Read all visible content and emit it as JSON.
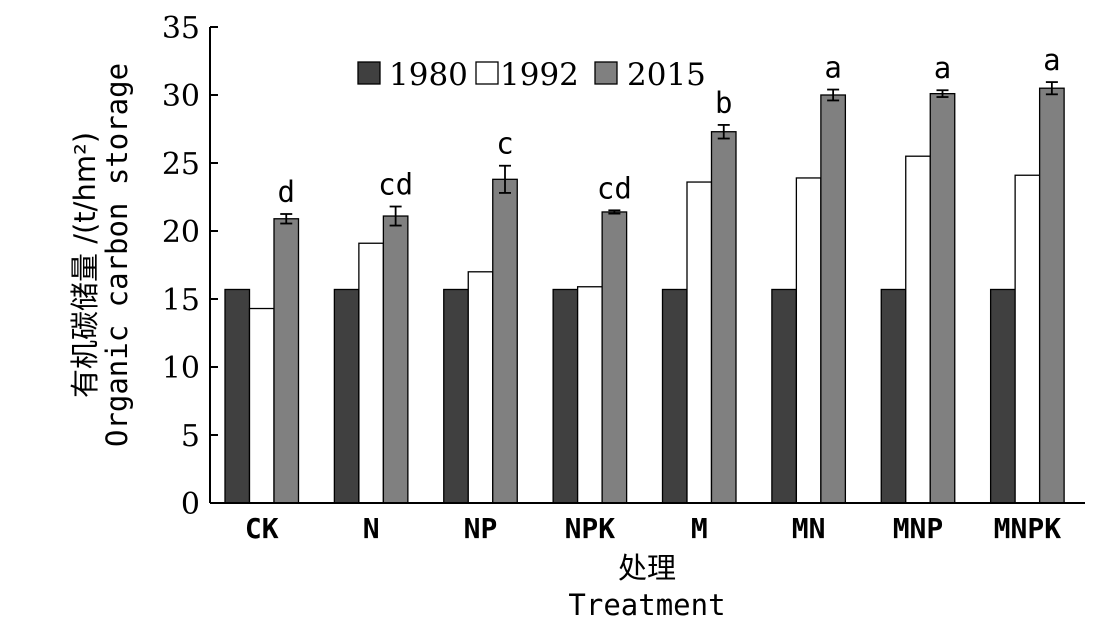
{
  "chart_data": {
    "type": "bar",
    "categories": [
      "CK",
      "N",
      "NP",
      "NPK",
      "M",
      "MN",
      "MNP",
      "MNPK"
    ],
    "series": [
      {
        "name": "1980",
        "values": [
          15.7,
          15.7,
          15.7,
          15.7,
          15.7,
          15.7,
          15.7,
          15.7
        ],
        "color": "#404040"
      },
      {
        "name": "1992",
        "values": [
          14.3,
          19.1,
          17.0,
          15.9,
          23.6,
          23.9,
          25.5,
          24.1
        ],
        "color": "#ffffff"
      },
      {
        "name": "2015",
        "values": [
          20.9,
          21.1,
          23.8,
          21.4,
          27.3,
          30.0,
          30.1,
          30.5
        ],
        "color": "#808080",
        "errors": [
          0.35,
          0.7,
          1.0,
          0.12,
          0.5,
          0.4,
          0.25,
          0.45
        ]
      }
    ],
    "significance_labels": [
      "d",
      "cd",
      "c",
      "cd",
      "b",
      "a",
      "a",
      "a"
    ],
    "xlabel_cn": "处理",
    "xlabel_en": "Treatment",
    "ylabel_cn": "有机碳储量 /(t/hm²)",
    "ylabel_en": "Organic carbon storage",
    "ylim": [
      0,
      35
    ],
    "yticks": [
      "0",
      "5",
      "10",
      "15",
      "20",
      "25",
      "30",
      "35"
    ],
    "grid": false,
    "legend_position": "top-center"
  }
}
